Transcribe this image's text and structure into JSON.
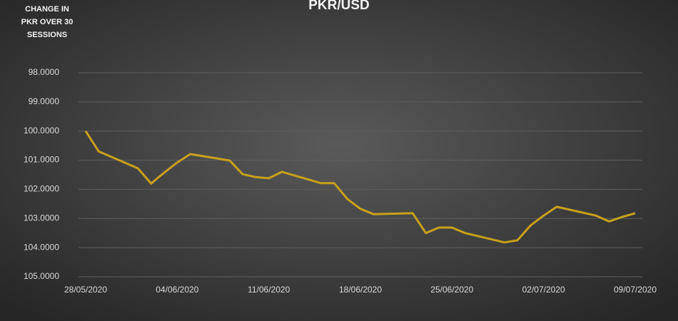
{
  "chart_data": {
    "type": "line",
    "title": "PKR/USD",
    "annotation": [
      "CHANGE IN",
      "PKR OVER 30",
      "SESSIONS"
    ],
    "x": [
      "28/05/2020",
      "29/05/2020",
      "01/06/2020",
      "02/06/2020",
      "03/06/2020",
      "04/06/2020",
      "05/06/2020",
      "08/06/2020",
      "09/06/2020",
      "10/06/2020",
      "11/06/2020",
      "12/06/2020",
      "15/06/2020",
      "16/06/2020",
      "17/06/2020",
      "18/06/2020",
      "19/06/2020",
      "22/06/2020",
      "23/06/2020",
      "24/06/2020",
      "25/06/2020",
      "26/06/2020",
      "29/06/2020",
      "30/06/2020",
      "01/07/2020",
      "02/07/2020",
      "03/07/2020",
      "06/07/2020",
      "07/07/2020",
      "08/07/2020",
      "09/07/2020"
    ],
    "series": [
      {
        "name": "PKR/USD",
        "color": "#c9a01c",
        "values": [
          100.0,
          100.7,
          101.28,
          101.8,
          101.43,
          101.08,
          100.79,
          101.01,
          101.48,
          101.58,
          101.62,
          101.4,
          101.79,
          101.79,
          102.33,
          102.67,
          102.85,
          102.82,
          103.5,
          103.31,
          103.31,
          103.5,
          103.82,
          103.75,
          103.24,
          102.9,
          102.6,
          102.9,
          103.1,
          102.95,
          102.82
        ]
      }
    ],
    "xlim": [
      "28/05/2020",
      "09/07/2020"
    ],
    "xticks": [
      "28/05/2020",
      "04/06/2020",
      "11/06/2020",
      "18/06/2020",
      "25/06/2020",
      "02/07/2020",
      "09/07/2020"
    ],
    "ylim": [
      105,
      98
    ],
    "yticks": [
      {
        "value": 98,
        "label": "98.0000"
      },
      {
        "value": 99,
        "label": "99.0000"
      },
      {
        "value": 100,
        "label": "100.0000"
      },
      {
        "value": 101,
        "label": "101.0000"
      },
      {
        "value": 102,
        "label": "102.0000"
      },
      {
        "value": 103,
        "label": "103.0000"
      },
      {
        "value": 104,
        "label": "104.0000"
      },
      {
        "value": 105,
        "label": "105.0000"
      }
    ],
    "grid": true
  }
}
